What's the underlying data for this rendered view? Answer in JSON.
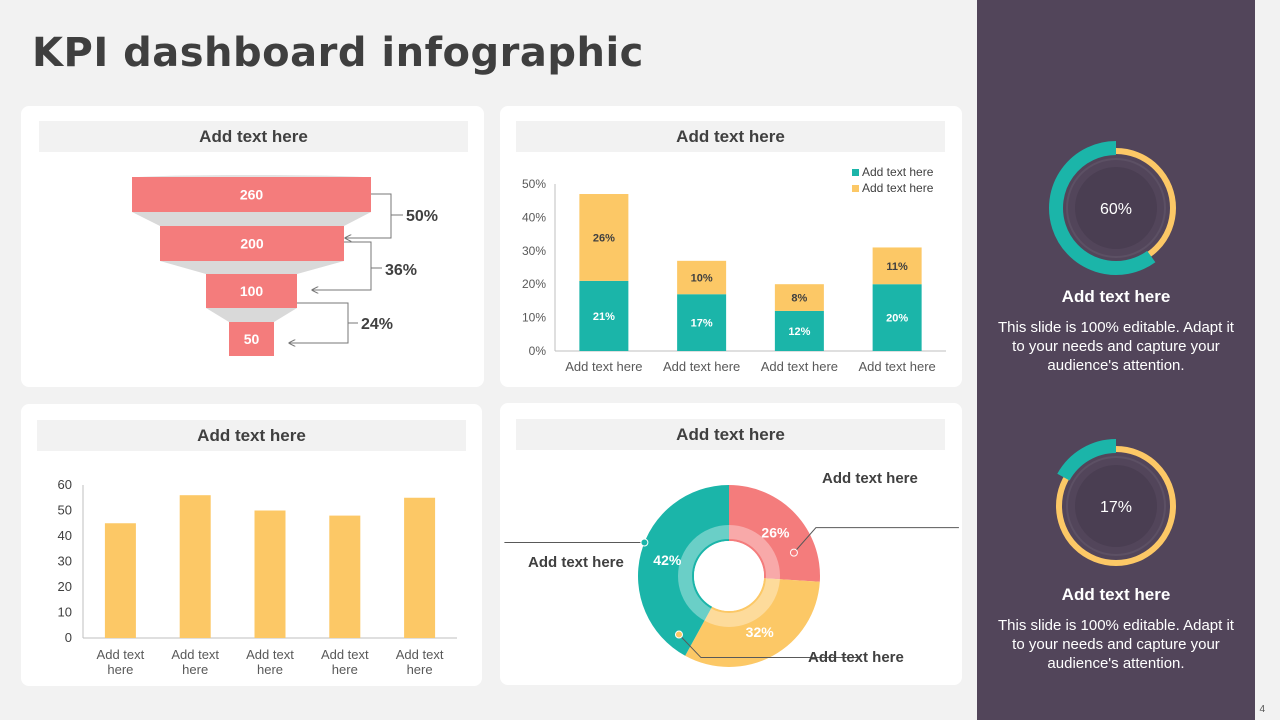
{
  "page": {
    "title": "KPI dashboard infographic",
    "page_number": "4"
  },
  "funnel_card": {
    "header": "Add text here",
    "chart_data": {
      "type": "funnel",
      "stages": [
        260,
        200,
        100,
        50
      ],
      "conversions": [
        "50%",
        "36%",
        "24%"
      ]
    }
  },
  "stacked_card": {
    "header": "Add text here",
    "chart_data": {
      "type": "bar",
      "stacked": true,
      "categories": [
        "Add text here",
        "Add text here",
        "Add text here",
        "Add text here"
      ],
      "series": [
        {
          "name": "Add text here",
          "color": "#1bb5a9",
          "values": [
            21,
            17,
            12,
            20
          ],
          "labels": [
            "21%",
            "17%",
            "12%",
            "20%"
          ]
        },
        {
          "name": "Add text here",
          "color": "#fcc866",
          "values": [
            26,
            10,
            8,
            11
          ],
          "labels": [
            "26%",
            "10%",
            "8%",
            "11%"
          ]
        }
      ],
      "ylim": [
        0,
        50
      ],
      "yticks": [
        "0%",
        "10%",
        "20%",
        "30%",
        "40%",
        "50%"
      ],
      "legend": "top-right"
    }
  },
  "bar_card": {
    "header": "Add text here",
    "chart_data": {
      "type": "bar",
      "categories": [
        [
          "Add text",
          "here"
        ],
        [
          "Add text",
          "here"
        ],
        [
          "Add text",
          "here"
        ],
        [
          "Add text",
          "here"
        ],
        [
          "Add text",
          "here"
        ]
      ],
      "values": [
        45,
        56,
        50,
        48,
        55
      ],
      "ylim": [
        0,
        60
      ],
      "yticks": [
        "0",
        "10",
        "20",
        "30",
        "40",
        "50",
        "60"
      ],
      "color": "#fcc866"
    }
  },
  "donut_card": {
    "header": "Add text here",
    "chart_data": {
      "type": "pie",
      "donut": true,
      "slices": [
        {
          "label": "Add text here",
          "value": 26,
          "text": "26%",
          "color": "#f47c7c"
        },
        {
          "label": "Add text here",
          "value": 32,
          "text": "32%",
          "color": "#fcc866"
        },
        {
          "label": "Add text here",
          "value": 42,
          "text": "42%",
          "color": "#1bb5a9"
        }
      ]
    }
  },
  "sidebar": {
    "kpis": [
      {
        "percent": "60%",
        "value": 60,
        "heading": "Add text here",
        "body": "This slide is 100% editable. Adapt it to your needs and capture your audience's attention."
      },
      {
        "percent": "17%",
        "value": 17,
        "heading": "Add text here",
        "body": "This slide is 100% editable. Adapt it to your needs and capture your audience's attention."
      }
    ],
    "colors": {
      "background": "#52455a",
      "teal": "#1bb5a9",
      "yellow": "#fcc866",
      "inner": "#4a3e52"
    }
  }
}
